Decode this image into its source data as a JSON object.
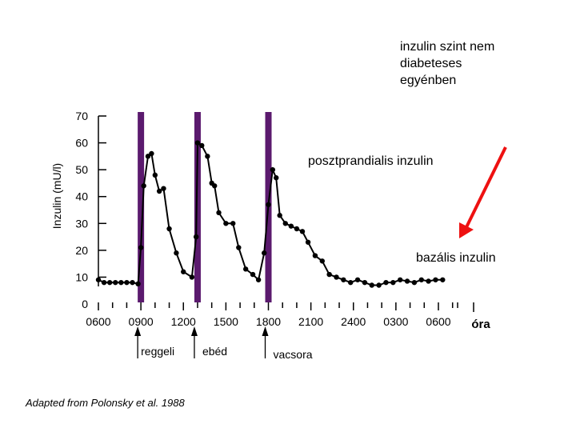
{
  "chart_data": {
    "type": "line",
    "title_lines": [
      "inzulin szint nem",
      "diabeteses",
      "egyénben"
    ],
    "ylabel": "Inzulin (mU/l)",
    "xlabel": "óra",
    "ylim": [
      0,
      70
    ],
    "yticks": [
      0,
      10,
      20,
      30,
      40,
      50,
      60,
      70
    ],
    "xlim": [
      6,
      31
    ],
    "xtick_labels": [
      {
        "x": 6,
        "label": "0600"
      },
      {
        "x": 9,
        "label": "0900"
      },
      {
        "x": 12,
        "label": "1200"
      },
      {
        "x": 15,
        "label": "1500"
      },
      {
        "x": 18,
        "label": "1800"
      },
      {
        "x": 21,
        "label": "2100"
      },
      {
        "x": 24,
        "label": "2400"
      },
      {
        "x": 27,
        "label": "0300"
      },
      {
        "x": 30,
        "label": "0600"
      }
    ],
    "series": [
      {
        "name": "Inzulin",
        "x": [
          6,
          6.4,
          6.8,
          7.2,
          7.6,
          8.0,
          8.4,
          8.8,
          9.0,
          9.2,
          9.5,
          9.75,
          10.0,
          10.3,
          10.6,
          11.0,
          11.5,
          12.0,
          12.6,
          12.9,
          13.0,
          13.3,
          13.7,
          14.0,
          14.2,
          14.5,
          15.0,
          15.5,
          15.9,
          16.4,
          16.9,
          17.3,
          17.7,
          18.0,
          18.3,
          18.55,
          18.8,
          19.2,
          19.6,
          20.0,
          20.4,
          20.8,
          21.3,
          21.8,
          22.3,
          22.8,
          23.3,
          23.8,
          24.3,
          24.8,
          25.3,
          25.8,
          26.3,
          26.8,
          27.3,
          27.8,
          28.3,
          28.8,
          29.3,
          29.8,
          30.3
        ],
        "y": [
          9,
          8,
          8,
          8,
          8,
          8,
          8,
          7.5,
          21,
          44,
          55,
          56,
          48,
          42,
          43,
          28,
          19,
          12,
          10,
          25,
          60,
          59,
          55,
          45,
          44,
          34,
          30,
          30,
          21,
          13,
          11,
          9,
          19,
          37,
          50,
          47,
          33,
          30,
          29,
          28,
          27,
          23,
          18,
          16,
          11,
          10,
          9,
          8,
          9,
          8,
          7,
          7,
          8,
          8,
          9,
          8.5,
          8,
          9,
          8.5,
          9,
          9
        ]
      }
    ],
    "meals": [
      {
        "x": 9.0,
        "label": "reggeli"
      },
      {
        "x": 13.0,
        "label": "ebéd"
      },
      {
        "x": 18.0,
        "label": "vacsora"
      }
    ],
    "annotations": {
      "postprandial": "posztprandialis inzulin",
      "basal": "bazális inzulin"
    },
    "colors": {
      "line": "#000000",
      "meal_bar": "#5B1A6E",
      "arrow": "#EE1111"
    }
  },
  "source": "Adapted from Polonsky et al. 1988"
}
